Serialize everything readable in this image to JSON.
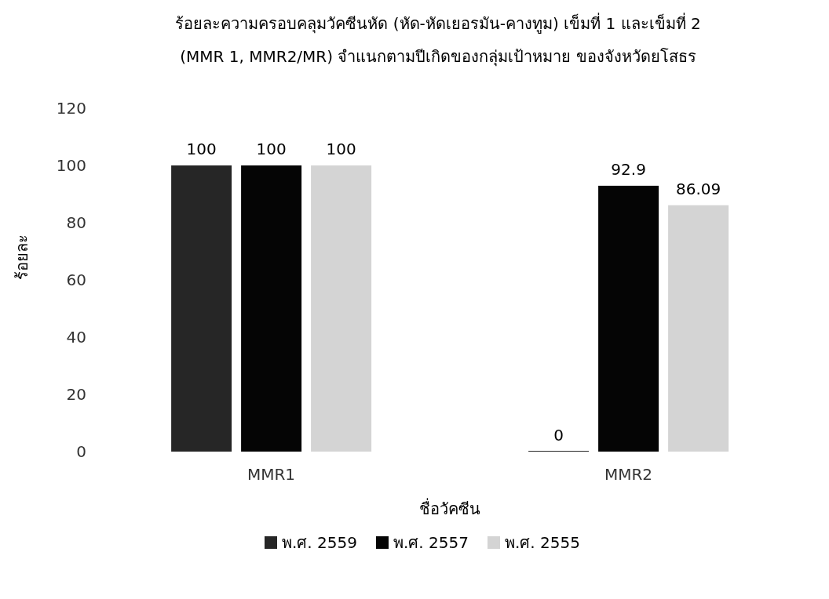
{
  "chart_data": {
    "type": "bar",
    "title": "ร้อยละความครอบคลุมวัคซีนหัด (หัด-หัดเยอรมัน-คางทูม) เข็มที่ 1 และเข็มที่ 2",
    "subtitle": "(MMR 1, MMR2/MR) จำแนกตามปีเกิดของกลุ่มเป้าหมาย ของจังหวัดยโสธร",
    "xlabel": "ชื่อวัคซีน",
    "ylabel": "ร้อยละ",
    "categories": [
      "MMR1",
      "MMR2"
    ],
    "series": [
      {
        "name": "พ.ศ. 2559",
        "color": "#262626",
        "values": [
          100,
          0
        ]
      },
      {
        "name": "พ.ศ. 2557",
        "color": "#050505",
        "values": [
          100,
          92.9
        ]
      },
      {
        "name": "พ.ศ. 2555",
        "color": "#d4d4d4",
        "values": [
          100,
          86.09
        ]
      }
    ],
    "ylim": [
      0,
      120
    ],
    "yticks": [
      0,
      20,
      40,
      60,
      80,
      100,
      120
    ],
    "grid": false,
    "legend": "bottom",
    "data_labels": true
  }
}
